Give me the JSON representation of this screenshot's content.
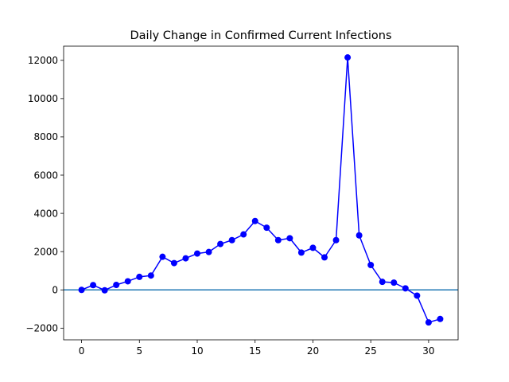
{
  "chart_data": {
    "type": "line",
    "title": "Daily Change in Confirmed Current Infections",
    "xlabel": "",
    "ylabel": "",
    "xlim": [
      -1.55,
      32.55
    ],
    "ylim": [
      -2610,
      12740
    ],
    "xticks": [
      0,
      5,
      10,
      15,
      20,
      25,
      30
    ],
    "yticks": [
      -2000,
      0,
      2000,
      4000,
      6000,
      8000,
      10000,
      12000
    ],
    "grid": false,
    "legend": "none",
    "reference_line": {
      "y": 0,
      "color": "#1f77b4"
    },
    "series": [
      {
        "color": "#0000ff",
        "marker": "circle",
        "x": [
          0,
          1,
          2,
          3,
          4,
          5,
          6,
          7,
          8,
          9,
          10,
          11,
          12,
          13,
          14,
          15,
          16,
          17,
          18,
          19,
          20,
          21,
          22,
          23,
          24,
          25,
          26,
          27,
          28,
          29,
          30,
          31
        ],
        "y": [
          0,
          250,
          -20,
          260,
          450,
          680,
          750,
          1730,
          1400,
          1650,
          1900,
          1980,
          2400,
          2600,
          2900,
          3600,
          3250,
          2600,
          2700,
          1950,
          2200,
          1700,
          2600,
          12150,
          2850,
          1300,
          420,
          380,
          80,
          -300,
          -1700,
          -1520
        ]
      }
    ]
  }
}
